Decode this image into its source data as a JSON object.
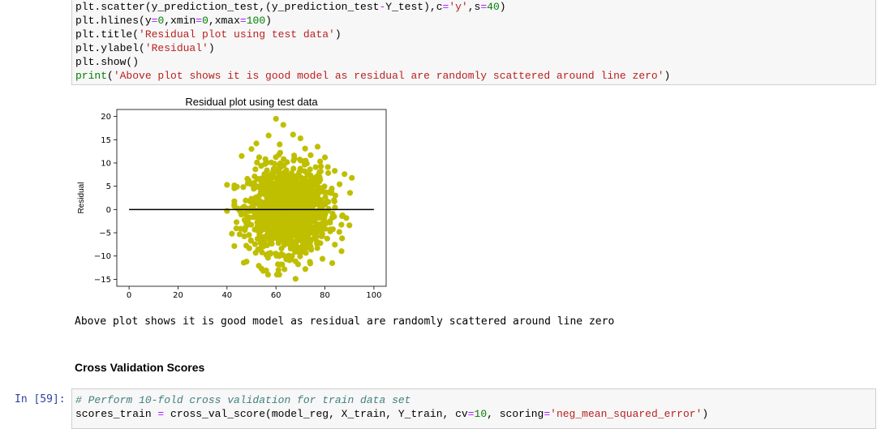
{
  "cell1": {
    "lines": [
      [
        {
          "t": "plt.scatter(y_prediction_test,(y_prediction_test",
          "c": ""
        },
        {
          "t": "-",
          "c": "op"
        },
        {
          "t": "Y_test),c",
          "c": ""
        },
        {
          "t": "=",
          "c": "op"
        },
        {
          "t": "'y'",
          "c": "str"
        },
        {
          "t": ",s",
          "c": ""
        },
        {
          "t": "=",
          "c": "op"
        },
        {
          "t": "40",
          "c": "num"
        },
        {
          "t": ")",
          "c": ""
        }
      ],
      [
        {
          "t": "plt.hlines(y",
          "c": ""
        },
        {
          "t": "=",
          "c": "op"
        },
        {
          "t": "0",
          "c": "num"
        },
        {
          "t": ",xmin",
          "c": ""
        },
        {
          "t": "=",
          "c": "op"
        },
        {
          "t": "0",
          "c": "num"
        },
        {
          "t": ",xmax",
          "c": ""
        },
        {
          "t": "=",
          "c": "op"
        },
        {
          "t": "100",
          "c": "num"
        },
        {
          "t": ")",
          "c": ""
        }
      ],
      [
        {
          "t": "plt.title(",
          "c": ""
        },
        {
          "t": "'Residual plot using test data'",
          "c": "str"
        },
        {
          "t": ")",
          "c": ""
        }
      ],
      [
        {
          "t": "plt.ylabel(",
          "c": ""
        },
        {
          "t": "'Residual'",
          "c": "str"
        },
        {
          "t": ")",
          "c": ""
        }
      ],
      [
        {
          "t": "plt.show()",
          "c": ""
        }
      ],
      [
        {
          "t": "print",
          "c": "builtin"
        },
        {
          "t": "(",
          "c": ""
        },
        {
          "t": "'Above plot shows it is good model as residual are randomly scattered around line zero'",
          "c": "str"
        },
        {
          "t": ")",
          "c": ""
        }
      ]
    ]
  },
  "output_text": "Above plot shows it is good model as residual are randomly scattered around line zero",
  "markdown_heading": "Cross Validation Scores",
  "cell2": {
    "prompt": "In [59]:",
    "lines": [
      [
        {
          "t": "# Perform 10-fold cross validation for train data set",
          "c": "com"
        }
      ],
      [
        {
          "t": "scores_train ",
          "c": ""
        },
        {
          "t": "=",
          "c": "op"
        },
        {
          "t": " cross_val_score(model_reg, X_train, Y_train, cv",
          "c": ""
        },
        {
          "t": "=",
          "c": "op"
        },
        {
          "t": "10",
          "c": "num"
        },
        {
          "t": ", scoring",
          "c": ""
        },
        {
          "t": "=",
          "c": "op"
        },
        {
          "t": "'neg_mean_squared_error'",
          "c": "str"
        },
        {
          "t": ")",
          "c": ""
        }
      ]
    ]
  },
  "chart_data": {
    "type": "scatter",
    "title": "Residual plot using test data",
    "xlabel": "",
    "ylabel": "Residual",
    "xlim": [
      -5,
      105
    ],
    "ylim": [
      -16.5,
      21.5
    ],
    "xticks": [
      0,
      20,
      40,
      60,
      80,
      100
    ],
    "yticks": [
      -15,
      -10,
      -5,
      0,
      5,
      10,
      15,
      20
    ],
    "point_color": "#bfbf00",
    "line_color": "#000000",
    "hline": {
      "y": 0,
      "xmin": 0,
      "xmax": 100
    },
    "cluster": {
      "x_center": 65,
      "x_spread": 8,
      "y_center": 0,
      "y_spread": 4.5,
      "count": 1400
    },
    "outliers": [
      [
        60,
        19.5
      ],
      [
        63,
        18.2
      ],
      [
        67,
        16.1
      ],
      [
        57,
        15.9
      ],
      [
        52,
        14.2
      ],
      [
        70,
        15.3
      ],
      [
        46,
        11.5
      ],
      [
        80,
        11.2
      ],
      [
        84,
        8.3
      ],
      [
        88,
        7.6
      ],
      [
        91,
        6.8
      ],
      [
        40,
        5.3
      ],
      [
        40,
        -0.3
      ],
      [
        42,
        -5.2
      ],
      [
        48,
        -11.2
      ],
      [
        53,
        -12.1
      ],
      [
        61,
        -13.0
      ],
      [
        68,
        -14.9
      ],
      [
        74,
        -11.6
      ],
      [
        79,
        -10.6
      ],
      [
        87,
        -6.2
      ],
      [
        90,
        -3.4
      ],
      [
        56,
        -13.1
      ],
      [
        72,
        -12.8
      ],
      [
        50,
        13.0
      ],
      [
        77,
        13.5
      ]
    ]
  }
}
